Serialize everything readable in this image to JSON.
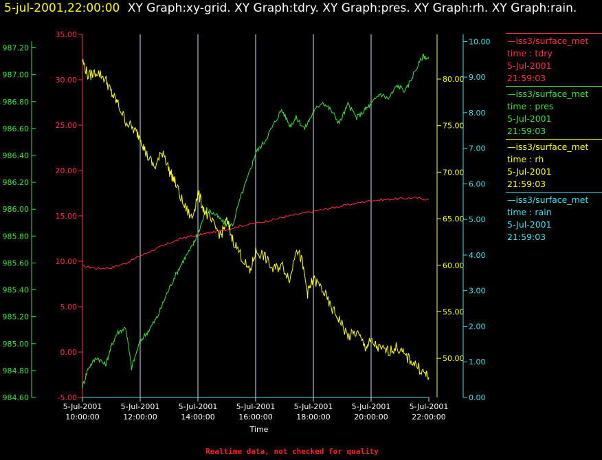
{
  "header": {
    "timestamp": "5-jul-2001,22:00:00",
    "graphs": "XY Graph:xy-grid.  XY Graph:tdry.  XY Graph:pres.  XY Graph:rh.  XY Graph:rain."
  },
  "legend": [
    {
      "source": "—iss3/surface_met",
      "field": "time : tdry",
      "date": "5-Jul-2001",
      "time": "21:59:03",
      "color": "#ff3040"
    },
    {
      "source": "—iss3/surface_met",
      "field": "time : pres",
      "date": "5-Jul-2001",
      "time": "21:59:03",
      "color": "#40e040"
    },
    {
      "source": "—iss3/surface_met",
      "field": "time : rh",
      "date": "5-Jul-2001",
      "time": "21:59:03",
      "color": "#ffff00"
    },
    {
      "source": "—iss3/surface_met",
      "field": "time : rain",
      "date": "5-Jul-2001",
      "time": "21:59:03",
      "color": "#40e0f0"
    }
  ],
  "footer": {
    "note": "Realtime data, not checked for quality"
  },
  "chart_data": {
    "type": "line",
    "xlabel": "Time",
    "x_ticks": [
      {
        "date": "5-Jul-2001",
        "time": "10:00:00"
      },
      {
        "date": "5-Jul-2001",
        "time": "12:00:00"
      },
      {
        "date": "5-Jul-2001",
        "time": "14:00:00"
      },
      {
        "date": "5-Jul-2001",
        "time": "16:00:00"
      },
      {
        "date": "5-Jul-2001",
        "time": "18:00:00"
      },
      {
        "date": "5-Jul-2001",
        "time": "20:00:00"
      },
      {
        "date": "5-Jul-2001",
        "time": "22:00:00"
      }
    ],
    "xlim_hours": [
      10,
      22
    ],
    "grid": "vertical",
    "axes": [
      {
        "id": "tdry",
        "color": "#ff3040",
        "ylim": [
          -5,
          35
        ],
        "ticks": [
          "-5.00",
          "0.00",
          "5.00",
          "10.00",
          "15.00",
          "20.00",
          "25.00",
          "30.00",
          "35.00"
        ]
      },
      {
        "id": "pres",
        "color": "#40e040",
        "ylim": [
          984.6,
          987.3
        ],
        "ticks": [
          "984.60",
          "984.80",
          "985.00",
          "985.20",
          "985.40",
          "985.60",
          "985.80",
          "986.00",
          "986.20",
          "986.40",
          "986.60",
          "986.80",
          "987.00",
          "987.20"
        ]
      },
      {
        "id": "rh",
        "color": "#ffff00",
        "ylim": [
          45.8,
          84.8
        ],
        "ticks": [
          "50.00",
          "55.00",
          "60.00",
          "65.00",
          "70.00",
          "75.00",
          "80.00"
        ]
      },
      {
        "id": "rain",
        "color": "#40e0f0",
        "ylim": [
          0,
          10.2
        ],
        "ticks": [
          "0.00",
          "1.00",
          "2.00",
          "3.00",
          "4.00",
          "5.00",
          "6.00",
          "7.00",
          "8.00",
          "9.00",
          "10.00"
        ]
      }
    ],
    "series": [
      {
        "name": "tdry",
        "axis": "tdry",
        "x": [
          10.0,
          10.5,
          11.0,
          11.5,
          12.0,
          12.5,
          13.0,
          13.5,
          14.0,
          14.5,
          15.0,
          15.5,
          16.0,
          16.5,
          17.0,
          17.5,
          18.0,
          18.5,
          19.0,
          19.5,
          20.0,
          20.5,
          21.0,
          21.5,
          22.0
        ],
        "y": [
          9.5,
          9.2,
          9.3,
          9.8,
          10.6,
          11.3,
          12.0,
          12.6,
          12.9,
          13.2,
          13.5,
          13.9,
          14.2,
          14.5,
          14.9,
          15.2,
          15.5,
          15.8,
          16.1,
          16.4,
          16.7,
          16.8,
          16.9,
          17.0,
          16.8
        ]
      },
      {
        "name": "pres",
        "axis": "pres",
        "x": [
          10.0,
          10.2,
          10.5,
          10.8,
          11.0,
          11.2,
          11.5,
          11.7,
          12.0,
          12.3,
          12.6,
          12.9,
          13.2,
          13.5,
          13.8,
          14.0,
          14.3,
          14.6,
          14.9,
          15.2,
          15.5,
          15.8,
          16.0,
          16.3,
          16.6,
          16.9,
          17.2,
          17.4,
          17.7,
          18.0,
          18.3,
          18.6,
          18.9,
          19.2,
          19.5,
          19.8,
          20.0,
          20.3,
          20.6,
          20.9,
          21.2,
          21.5,
          21.8,
          22.0
        ],
        "y": [
          984.68,
          984.82,
          984.9,
          984.84,
          984.98,
          985.08,
          985.12,
          984.82,
          985.02,
          985.1,
          985.2,
          985.36,
          985.5,
          985.62,
          985.72,
          985.82,
          986.0,
          985.96,
          985.9,
          985.88,
          986.1,
          986.28,
          986.42,
          986.5,
          986.62,
          986.74,
          986.62,
          986.68,
          986.6,
          986.72,
          986.8,
          986.74,
          986.64,
          986.78,
          986.68,
          986.74,
          986.78,
          986.86,
          986.82,
          986.92,
          986.88,
          987.02,
          987.14,
          987.12
        ]
      },
      {
        "name": "rh",
        "axis": "rh",
        "x": [
          10.0,
          10.2,
          10.5,
          10.8,
          11.0,
          11.2,
          11.5,
          11.8,
          12.0,
          12.2,
          12.5,
          12.8,
          13.0,
          13.2,
          13.5,
          13.8,
          14.0,
          14.2,
          14.5,
          14.8,
          15.0,
          15.2,
          15.5,
          15.8,
          16.0,
          16.3,
          16.6,
          16.9,
          17.2,
          17.4,
          17.6,
          17.8,
          18.0,
          18.3,
          18.6,
          18.9,
          19.2,
          19.5,
          19.8,
          20.0,
          20.3,
          20.6,
          20.9,
          21.2,
          21.5,
          21.8,
          22.0
        ],
        "y": [
          82.0,
          80.3,
          80.8,
          80.0,
          78.5,
          77.5,
          75.5,
          74.5,
          73.8,
          72.0,
          70.5,
          72.3,
          70.2,
          69.0,
          66.5,
          65.0,
          67.8,
          66.0,
          64.5,
          63.2,
          64.8,
          62.8,
          61.0,
          59.2,
          61.5,
          61.0,
          59.5,
          60.0,
          58.5,
          62.0,
          60.5,
          57.0,
          58.5,
          57.5,
          55.5,
          54.2,
          52.3,
          52.8,
          51.2,
          51.8,
          51.0,
          50.8,
          51.2,
          50.2,
          49.5,
          48.5,
          48.0
        ]
      },
      {
        "name": "rain",
        "axis": "rain",
        "x": [
          10.0,
          22.0
        ],
        "y": [
          0.0,
          0.0
        ]
      }
    ]
  }
}
